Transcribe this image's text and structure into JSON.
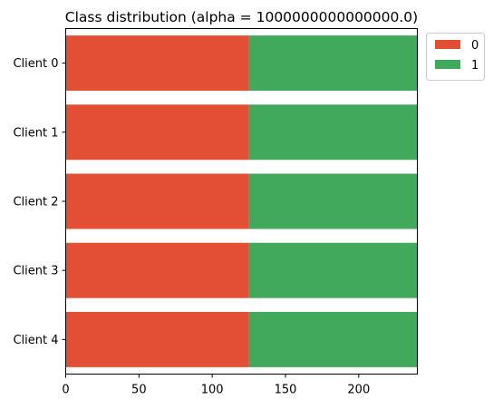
{
  "chart_data": {
    "type": "bar",
    "orientation": "horizontal",
    "stacked": true,
    "title": "Class distribution (alpha = 1000000000000000.0)",
    "xlabel": "",
    "ylabel": "",
    "categories": [
      "Client 0",
      "Client 1",
      "Client 2",
      "Client 3",
      "Client 4"
    ],
    "series": [
      {
        "name": "0",
        "color": "#e34f35",
        "values": [
          125,
          125,
          125,
          125,
          125
        ]
      },
      {
        "name": "1",
        "color": "#41a95b",
        "values": [
          115,
          115,
          115,
          115,
          115
        ]
      }
    ],
    "xlim": [
      0,
      240
    ],
    "xticks": [
      0,
      50,
      100,
      150,
      200
    ],
    "grid": false,
    "legend_position": "outside top-right"
  }
}
